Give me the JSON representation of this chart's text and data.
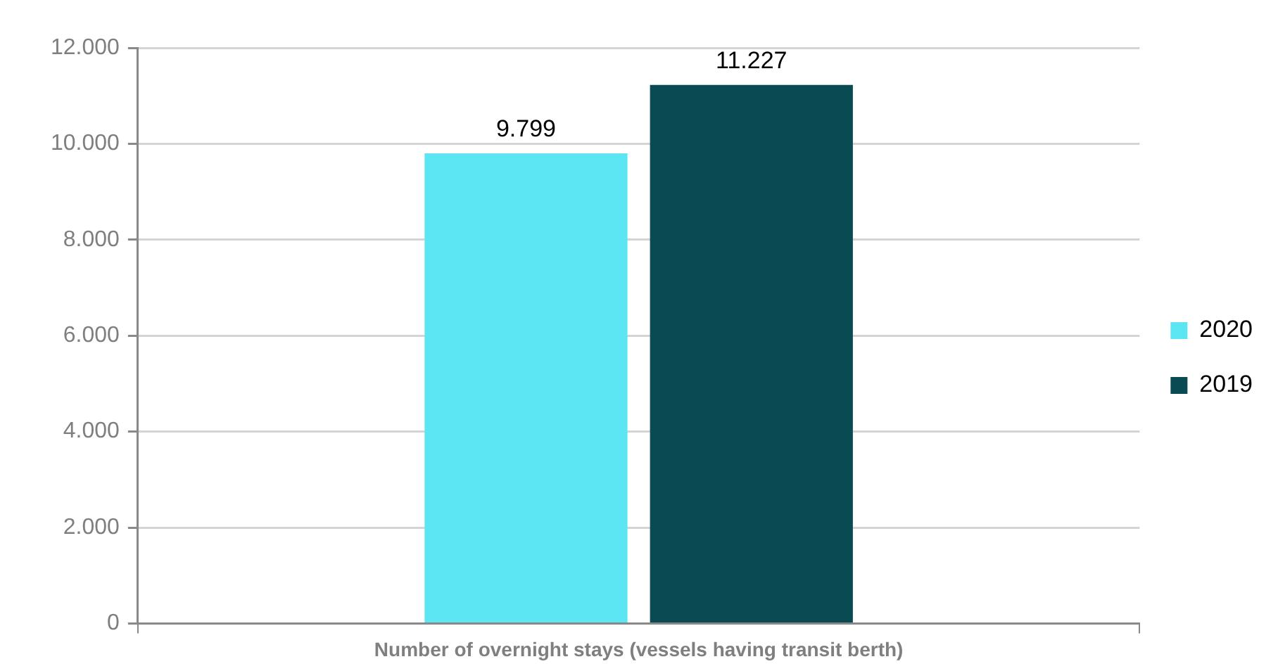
{
  "chart_data": {
    "type": "bar",
    "categories": [
      "Number of overnight stays (vessels having transit berth)"
    ],
    "series": [
      {
        "name": "2020",
        "color": "#5ce6f4",
        "values": [
          9799
        ],
        "value_labels": [
          "9.799"
        ]
      },
      {
        "name": "2019",
        "color": "#0a4a52",
        "values": [
          11227
        ],
        "value_labels": [
          "11.227"
        ]
      }
    ],
    "ylim": [
      0,
      12000
    ],
    "yticks": [
      0,
      {
        "value": 2000,
        "label": "2.000"
      },
      {
        "value": 4000,
        "label": "4.000"
      },
      {
        "value": 6000,
        "label": "6.000"
      },
      {
        "value": 8000,
        "label": "8.000"
      },
      {
        "value": 10000,
        "label": "10.000"
      },
      {
        "value": 12000,
        "label": "12.000"
      }
    ],
    "grid": "y",
    "legend": "right"
  }
}
